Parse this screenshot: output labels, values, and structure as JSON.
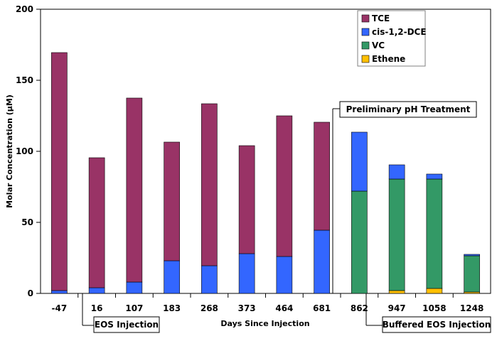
{
  "chart_data": {
    "type": "bar",
    "stacked": true,
    "categories": [
      "-47",
      "16",
      "107",
      "183",
      "268",
      "373",
      "464",
      "681",
      "862",
      "947",
      "1058",
      "1248"
    ],
    "series": [
      {
        "name": "Ethene",
        "color": "#ffc000",
        "values": [
          0,
          0,
          0,
          0,
          0,
          0,
          0,
          0,
          0,
          2,
          3.5,
          1
        ]
      },
      {
        "name": "VC",
        "color": "#339966",
        "values": [
          0,
          0,
          0,
          0,
          0,
          0,
          0,
          0,
          72,
          78.5,
          77,
          25.5
        ]
      },
      {
        "name": "cis-1,2-DCE",
        "color": "#3366ff",
        "values": [
          2,
          4,
          8,
          23,
          19.5,
          28,
          26,
          44.5,
          41.5,
          10,
          3.5,
          1
        ]
      },
      {
        "name": "TCE",
        "color": "#993366",
        "values": [
          167.5,
          91.5,
          129.5,
          83.5,
          114,
          76,
          99,
          76,
          0,
          0,
          0,
          0
        ]
      }
    ],
    "legend_order": [
      "TCE",
      "cis-1,2-DCE",
      "VC",
      "Ethene"
    ],
    "xlabel": "Days Since Injection",
    "ylabel": "Molar Concentration (µM)",
    "ylim": [
      0,
      200
    ],
    "yticks": [
      0,
      50,
      100,
      150,
      200
    ],
    "grid": false,
    "legend_position": "top-right",
    "annotations": [
      {
        "text": "EOS Injection",
        "after_category": "-47"
      },
      {
        "text": "Preliminary pH Treatment",
        "after_category": "681"
      },
      {
        "text": "Buffered EOS Injection",
        "after_category": "862"
      }
    ]
  }
}
